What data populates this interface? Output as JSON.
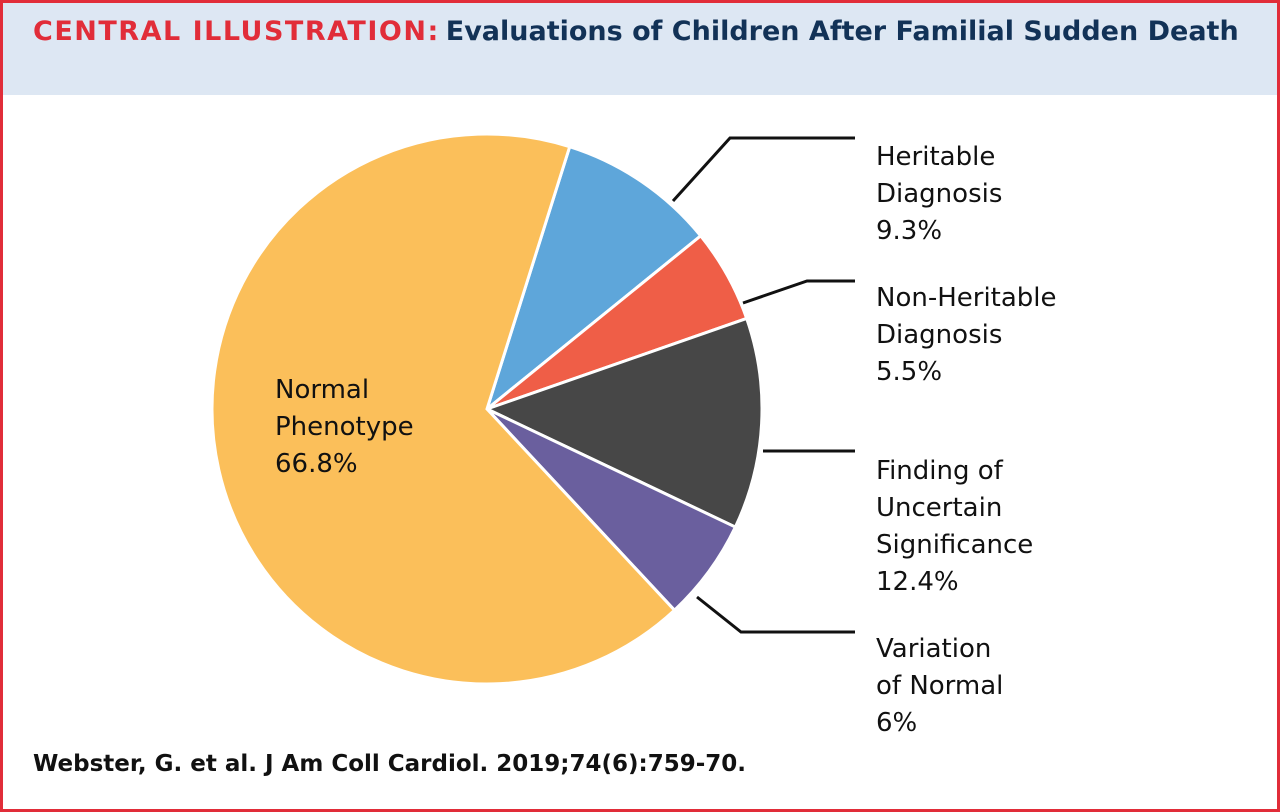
{
  "header": {
    "label": "CENTRAL ILLUSTRATION:",
    "title": "Evaluations of Children After Familial Sudden Death"
  },
  "citation": "Webster, G. et al. J Am Coll Cardiol. 2019;74(6):759-70.",
  "chart_data": {
    "type": "pie",
    "slices": [
      {
        "name": "Heritable Diagnosis",
        "label_lines": [
          "Heritable",
          "Diagnosis",
          "9.3%"
        ],
        "value": 9.3,
        "color": "#5ea6da"
      },
      {
        "name": "Non-Heritable Diagnosis",
        "label_lines": [
          "Non-Heritable",
          "Diagnosis",
          "5.5%"
        ],
        "value": 5.5,
        "color": "#ef5e47"
      },
      {
        "name": "Finding of Uncertain Significance",
        "label_lines": [
          "Finding of",
          "Uncertain",
          "Significance",
          "12.4%"
        ],
        "value": 12.4,
        "color": "#474747"
      },
      {
        "name": "Variation of Normal",
        "label_lines": [
          "Variation",
          "of Normal",
          "6%"
        ],
        "value": 6,
        "color": "#6a5f9e"
      },
      {
        "name": "Normal Phenotype",
        "label_lines": [
          "Normal",
          "Phenotype",
          "66.8%"
        ],
        "value": 66.8,
        "color": "#fbbf5a"
      }
    ],
    "legend": "callout labels"
  }
}
